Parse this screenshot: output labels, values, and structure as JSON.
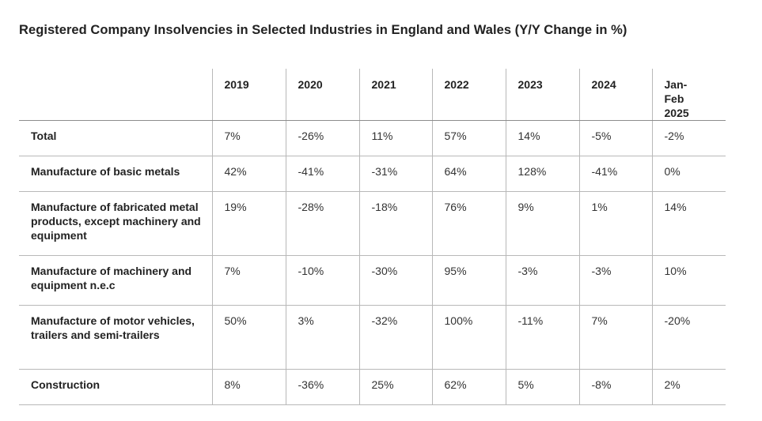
{
  "title": "Registered Company Insolvencies in Selected Industries in England and Wales (Y/Y Change in %)",
  "header": {
    "corner": "",
    "columns": [
      "2019",
      "2020",
      "2021",
      "2022",
      "2023",
      "2024",
      "Jan-Feb 2025"
    ]
  },
  "rows": [
    {
      "label": "Total",
      "cells": [
        "7%",
        "-26%",
        "11%",
        "57%",
        "14%",
        "-5%",
        "-2%"
      ]
    },
    {
      "label": "Manufacture of basic metals",
      "cells": [
        "42%",
        "-41%",
        "-31%",
        "64%",
        "128%",
        "-41%",
        "0%"
      ]
    },
    {
      "label": "Manufacture of fabricated metal products, except machinery and equipment",
      "cells": [
        "19%",
        "-28%",
        "-18%",
        "76%",
        "9%",
        "1%",
        "14%"
      ]
    },
    {
      "label": "Manufacture of machinery and equipment n.e.c",
      "cells": [
        "7%",
        "-10%",
        "-30%",
        "95%",
        "-3%",
        "-3%",
        "10%"
      ]
    },
    {
      "label": "Manufacture of motor vehicles, trailers and semi-trailers",
      "cells": [
        "50%",
        "3%",
        "-32%",
        "100%",
        "-11%",
        "7%",
        "-20%"
      ]
    },
    {
      "label": "Construction",
      "cells": [
        "8%",
        "-36%",
        "25%",
        "62%",
        "5%",
        "-8%",
        "2%"
      ]
    }
  ],
  "chart_data": {
    "type": "table",
    "title": "Registered Company Insolvencies in Selected Industries in England and Wales (Y/Y Change in %)",
    "columns": [
      "2019",
      "2020",
      "2021",
      "2022",
      "2023",
      "2024",
      "Jan-Feb 2025"
    ],
    "rows": [
      {
        "name": "Total",
        "values": [
          7,
          -26,
          11,
          57,
          14,
          -5,
          -2
        ]
      },
      {
        "name": "Manufacture of basic metals",
        "values": [
          42,
          -41,
          -31,
          64,
          128,
          -41,
          0
        ]
      },
      {
        "name": "Manufacture of fabricated metal products, except machinery and equipment",
        "values": [
          19,
          -28,
          -18,
          76,
          9,
          1,
          14
        ]
      },
      {
        "name": "Manufacture of machinery and equipment n.e.c",
        "values": [
          7,
          -10,
          -30,
          95,
          -3,
          -3,
          10
        ]
      },
      {
        "name": "Manufacture of motor vehicles, trailers and semi-trailers",
        "values": [
          50,
          3,
          -32,
          100,
          -11,
          7,
          -20
        ]
      },
      {
        "name": "Construction",
        "values": [
          8,
          -36,
          25,
          62,
          5,
          -8,
          2
        ]
      }
    ],
    "unit": "%"
  }
}
